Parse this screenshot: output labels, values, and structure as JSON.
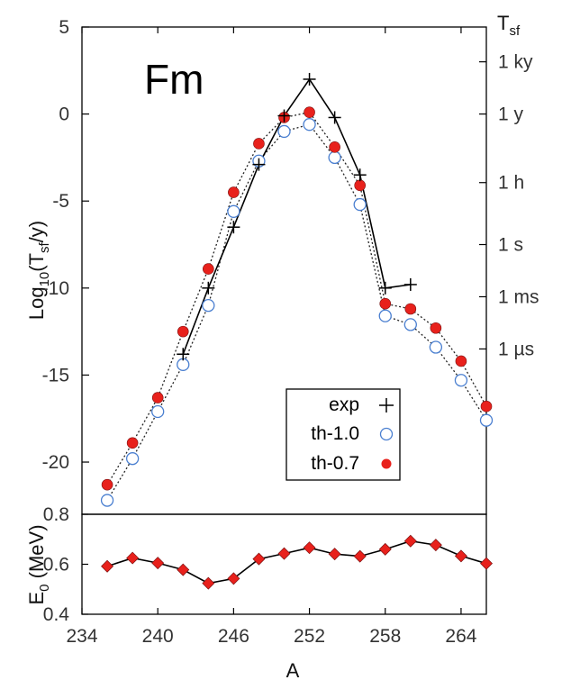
{
  "chart_data": [
    {
      "type": "scatter",
      "title": "Fm",
      "xlabel": "A",
      "ylabel_main": "Log",
      "ylabel_sub": "10",
      "ylabel_paren_open": "(T",
      "ylabel_paren_sub": "sf",
      "ylabel_tail": "/y)",
      "xlim": [
        234,
        266
      ],
      "ylim": [
        -23,
        5
      ],
      "yticks": [
        5,
        0,
        -5,
        -10,
        -15,
        -20
      ],
      "ytick_labels": [
        "5",
        "0",
        "-5",
        "-10",
        "-15",
        "-20"
      ],
      "right_axis": {
        "title": "T",
        "title_sub": "sf",
        "ticks": [
          {
            "label": "1 ky",
            "value": 3
          },
          {
            "label": "1 y",
            "value": 0
          },
          {
            "label": "1 h",
            "value": -3.94
          },
          {
            "label": "1 s",
            "value": -7.5
          },
          {
            "label": "1 ms",
            "value": -10.5
          },
          {
            "label": "1 µs",
            "value": -13.5
          }
        ]
      },
      "legend": {
        "position": "bottom-right",
        "entries": [
          "exp",
          "th-1.0",
          "th-0.7"
        ]
      },
      "series": [
        {
          "name": "exp",
          "marker": "plus",
          "line": "solid",
          "x": [
            242,
            244,
            246,
            248,
            250,
            252,
            254,
            256,
            258,
            260
          ],
          "y": [
            -13.8,
            -10.0,
            -6.5,
            -2.9,
            -0.1,
            2.0,
            -0.2,
            -3.5,
            -10.0,
            -9.8
          ]
        },
        {
          "name": "th-1.0",
          "marker": "open-circle",
          "line": "dotted",
          "color": "#4a7fd0",
          "x": [
            236,
            238,
            240,
            242,
            244,
            246,
            248,
            250,
            252,
            254,
            256,
            258,
            260,
            262,
            264,
            266
          ],
          "y": [
            -22.2,
            -19.8,
            -17.1,
            -14.4,
            -11.0,
            -5.6,
            -2.7,
            -1.0,
            -0.6,
            -2.5,
            -5.2,
            -11.6,
            -12.1,
            -13.4,
            -15.3,
            -17.6
          ]
        },
        {
          "name": "th-0.7",
          "marker": "filled-circle",
          "line": "dotted",
          "color": "#e8211c",
          "x": [
            236,
            238,
            240,
            242,
            244,
            246,
            248,
            250,
            252,
            254,
            256,
            258,
            260,
            262,
            264,
            266
          ],
          "y": [
            -21.3,
            -18.9,
            -16.3,
            -12.5,
            -8.9,
            -4.5,
            -1.7,
            -0.2,
            0.1,
            -1.9,
            -4.1,
            -10.9,
            -11.2,
            -12.3,
            -14.2,
            -16.8
          ]
        }
      ]
    },
    {
      "type": "line",
      "xlabel": "A",
      "ylabel_main": "E",
      "ylabel_sub": "0",
      "ylabel_tail": " (MeV)",
      "xlim": [
        234,
        266
      ],
      "ylim": [
        0.4,
        0.8
      ],
      "xticks": [
        234,
        240,
        246,
        252,
        258,
        264
      ],
      "xtick_labels": [
        "234",
        "240",
        "246",
        "252",
        "258",
        "264"
      ],
      "yticks": [
        0.8,
        0.6,
        0.4
      ],
      "ytick_labels": [
        "0.8",
        "0.6",
        "0.4"
      ],
      "series": [
        {
          "name": "E0",
          "marker": "diamond",
          "color": "#e8211c",
          "x": [
            236,
            238,
            240,
            242,
            244,
            246,
            248,
            250,
            252,
            254,
            256,
            258,
            260,
            262,
            264,
            266
          ],
          "y": [
            0.592,
            0.625,
            0.605,
            0.578,
            0.524,
            0.543,
            0.621,
            0.643,
            0.666,
            0.641,
            0.632,
            0.66,
            0.693,
            0.677,
            0.633,
            0.603
          ]
        }
      ]
    }
  ]
}
